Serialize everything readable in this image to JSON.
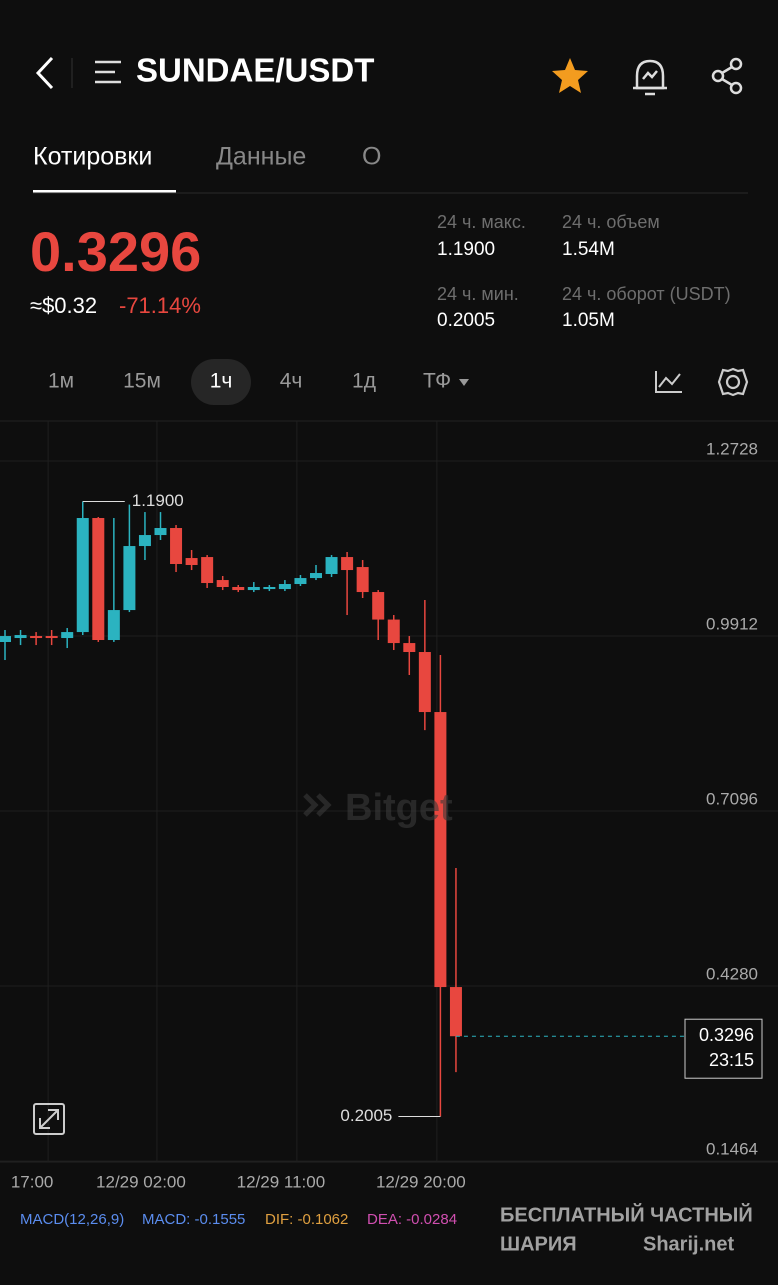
{
  "header": {
    "pair": "SUNDAE/USDT"
  },
  "tabs": [
    "Котировки",
    "Данные",
    "О"
  ],
  "ticker": {
    "price": "0.3296",
    "usd": "≈$0.32",
    "change": "-71.14%"
  },
  "stats": [
    {
      "label": "24 ч. макс.",
      "value": "1.1900"
    },
    {
      "label": "24 ч. объем",
      "value": "1.54M"
    },
    {
      "label": "24 ч. мин.",
      "value": "0.2005"
    },
    {
      "label": "24 ч. оборот (USDT)",
      "value": "1.05M"
    }
  ],
  "intervals": [
    "1м",
    "15м",
    "1ч",
    "4ч",
    "1д",
    "ТФ"
  ],
  "chart_data": {
    "type": "candlestick",
    "categories": [
      null,
      null,
      "17:00",
      null,
      null,
      null,
      null,
      null,
      null,
      "12/29 02:00",
      null,
      null,
      null,
      null,
      null,
      null,
      null,
      null,
      "12/29 11:00",
      null,
      null,
      null,
      null,
      null,
      null,
      null,
      null,
      "12/29 20:00",
      null,
      null
    ],
    "open": [
      0.9639,
      0.9703,
      0.9735,
      0.9735,
      0.9703,
      0.9799,
      1.1634,
      0.9671,
      1.0153,
      1.1183,
      1.136,
      1.1473,
      1.099,
      1.1006,
      1.0636,
      1.0524,
      1.0475,
      1.0491,
      1.0491,
      1.0572,
      1.0668,
      1.0733,
      1.1006,
      1.0845,
      1.0443,
      1.0,
      0.9622,
      0.9478,
      0.8512,
      0.4087
    ],
    "high": [
      0.9832,
      0.9832,
      0.9799,
      0.9832,
      0.9864,
      1.19,
      1.165,
      1.1634,
      1.185,
      1.173,
      1.173,
      1.1521,
      1.1119,
      1.1038,
      1.0701,
      1.0556,
      1.0604,
      1.0556,
      1.0636,
      1.0717,
      1.0878,
      1.1038,
      1.1087,
      1.0958,
      1.0475,
      1.0073,
      0.9735,
      1.0314,
      0.9429,
      0.6002
    ],
    "low": [
      0.9349,
      0.959,
      0.959,
      0.959,
      0.9542,
      0.9751,
      0.964,
      0.964,
      1.0121,
      1.0958,
      1.128,
      1.0765,
      1.0797,
      1.0508,
      1.0475,
      1.0443,
      1.0443,
      1.0459,
      1.0459,
      1.054,
      1.0636,
      1.0685,
      1.0073,
      1.0347,
      0.9671,
      0.951,
      0.9108,
      0.8222,
      0.2005,
      0.2719
    ],
    "close": [
      0.9735,
      0.9751,
      0.9703,
      0.9703,
      0.9799,
      1.1634,
      0.9671,
      1.0153,
      1.1183,
      1.136,
      1.1473,
      1.0894,
      1.0878,
      1.0588,
      1.0524,
      1.0475,
      1.0524,
      1.0524,
      1.0572,
      1.0668,
      1.0749,
      1.1006,
      1.0797,
      1.0443,
      1.0,
      0.9622,
      0.9478,
      0.8512,
      0.4087,
      0.3296
    ],
    "up_color": "#2bb3c0",
    "down_color": "#e8473f",
    "ylim": [
      0.1272,
      1.3195
    ],
    "yticks": [
      1.2728,
      0.9912,
      0.7096,
      {
        "value": 0.428,
        "label": "0.4280"
      },
      0.1464
    ],
    "grid": true,
    "max_marker": {
      "value": 1.19,
      "label": "1.1900"
    },
    "min_marker": {
      "value": 0.2005,
      "label": "0.2005"
    },
    "last_price": {
      "value": 0.3296,
      "label": "0.3296"
    },
    "countdown": "23:15"
  },
  "indicator": {
    "name": "MACD(12,26,9)",
    "macd": "MACD: -0.1555",
    "dif": "DIF: -0.1062",
    "dea": "DEA: -0.0284"
  },
  "watermark": {
    "brand": "Bitget",
    "line1": "БЕСПЛАТНЫЙ ЧАСТНЫЙ",
    "line2": "ШАРИЯ",
    "site": "Sharij.net"
  }
}
